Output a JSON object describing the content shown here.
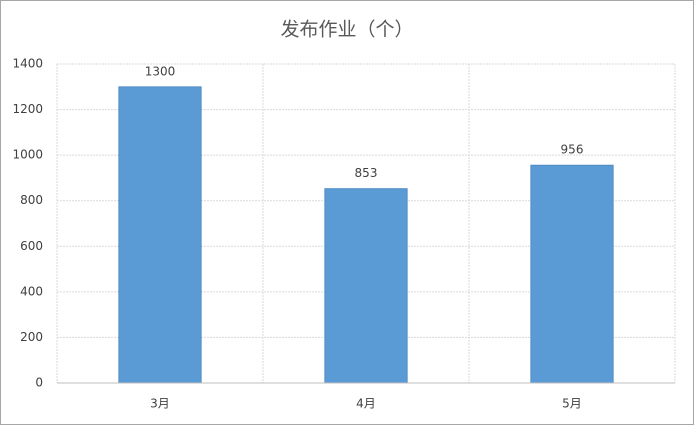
{
  "chart_data": {
    "type": "bar",
    "title": "发布作业（个）",
    "categories": [
      "3月",
      "4月",
      "5月"
    ],
    "values": [
      1300,
      853,
      956
    ],
    "color": "#5b9bd5",
    "ylim": [
      0,
      1400
    ],
    "yticks": [
      0,
      200,
      400,
      600,
      800,
      1000,
      1200,
      1400
    ],
    "grid": true
  }
}
